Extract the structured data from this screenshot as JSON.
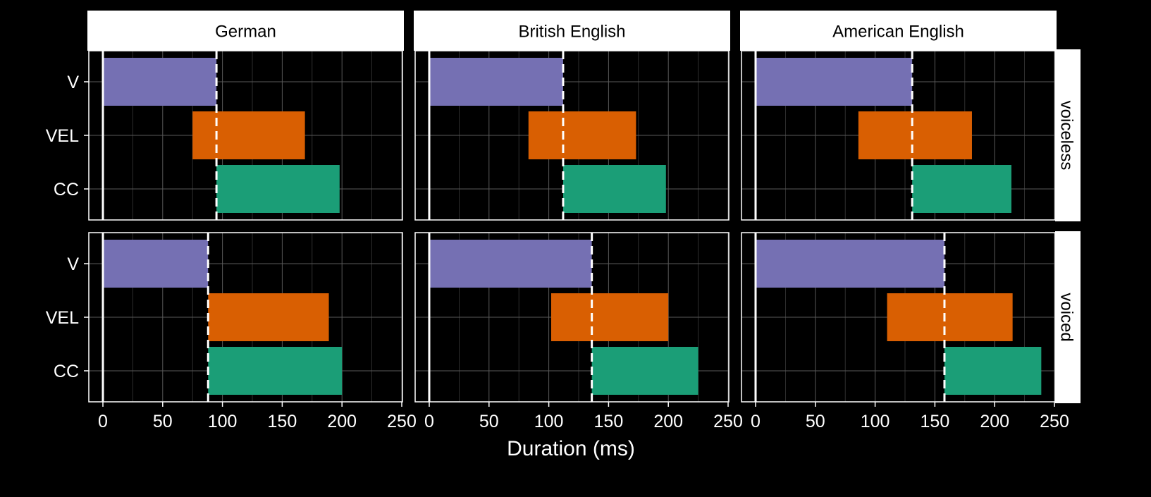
{
  "chart_data": {
    "type": "bar",
    "subtype": "floating-horizontal-bar-facet",
    "xlabel": "Duration (ms)",
    "ylabel": "",
    "xlim": [
      0,
      250
    ],
    "x_ticks": [
      "0",
      "50",
      "100",
      "150",
      "200",
      "250"
    ],
    "categories": [
      "V",
      "VEL",
      "CC"
    ],
    "facet_columns": [
      "German",
      "British English",
      "American English"
    ],
    "facet_rows": [
      "voiceless",
      "voiced"
    ],
    "grid": true,
    "legend": "none",
    "colors": {
      "V": "#7570b3",
      "VEL": "#d95f02",
      "CC": "#1b9e77",
      "background": "#000000",
      "strip": "#ffffff"
    },
    "panels": [
      {
        "column": "German",
        "row": "voiceless",
        "boundary": 95,
        "bars": [
          {
            "category": "V",
            "start": 0,
            "end": 95
          },
          {
            "category": "VEL",
            "start": 75,
            "end": 169
          },
          {
            "category": "CC",
            "start": 95,
            "end": 198
          }
        ]
      },
      {
        "column": "British English",
        "row": "voiceless",
        "boundary": 112,
        "bars": [
          {
            "category": "V",
            "start": 0,
            "end": 112
          },
          {
            "category": "VEL",
            "start": 83,
            "end": 173
          },
          {
            "category": "CC",
            "start": 112,
            "end": 198
          }
        ]
      },
      {
        "column": "American English",
        "row": "voiceless",
        "boundary": 131,
        "bars": [
          {
            "category": "V",
            "start": 0,
            "end": 131
          },
          {
            "category": "VEL",
            "start": 86,
            "end": 181
          },
          {
            "category": "CC",
            "start": 131,
            "end": 214
          }
        ]
      },
      {
        "column": "German",
        "row": "voiced",
        "boundary": 88,
        "bars": [
          {
            "category": "V",
            "start": 0,
            "end": 88
          },
          {
            "category": "VEL",
            "start": 88,
            "end": 189
          },
          {
            "category": "CC",
            "start": 88,
            "end": 200
          }
        ]
      },
      {
        "column": "British English",
        "row": "voiced",
        "boundary": 136,
        "bars": [
          {
            "category": "V",
            "start": 0,
            "end": 136
          },
          {
            "category": "VEL",
            "start": 102,
            "end": 200
          },
          {
            "category": "CC",
            "start": 136,
            "end": 225
          }
        ]
      },
      {
        "column": "American English",
        "row": "voiced",
        "boundary": 158,
        "bars": [
          {
            "category": "V",
            "start": 0,
            "end": 158
          },
          {
            "category": "VEL",
            "start": 110,
            "end": 215
          },
          {
            "category": "CC",
            "start": 158,
            "end": 239
          }
        ]
      }
    ]
  }
}
